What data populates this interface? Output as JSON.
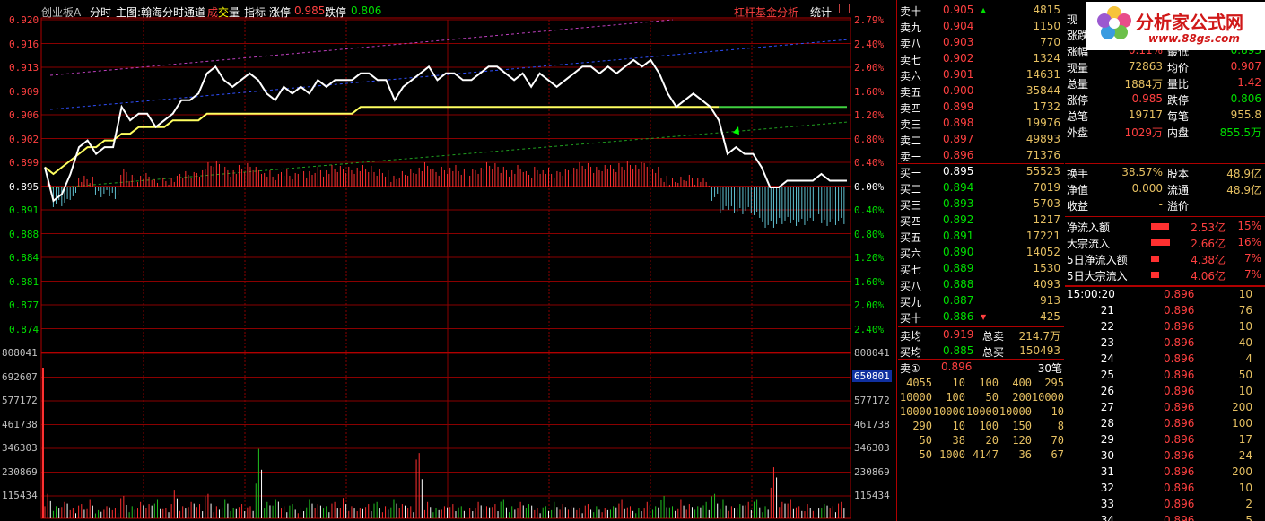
{
  "header": {
    "market": "创业板A",
    "items": [
      "分时",
      "主图:翰海分时通道",
      "成交量",
      "指标",
      "涨停",
      "跌停"
    ],
    "limit_up": "0.985",
    "limit_down": "0.806",
    "main_label": "主图:翰海分时通道",
    "vol_pre": "成",
    "vol_mid": "交",
    "vol_post": "量",
    "right_menu": "杠杆基金分析",
    "stats": "统计"
  },
  "price_axis": [
    "0.920",
    "0.916",
    "0.913",
    "0.909",
    "0.906",
    "0.902",
    "0.899",
    "0.895",
    "0.891",
    "0.888",
    "0.884",
    "0.881",
    "0.877",
    "0.874"
  ],
  "pct_axis": [
    "2.79%",
    "2.40%",
    "2.00%",
    "1.60%",
    "1.20%",
    "0.80%",
    "0.40%",
    "0.00%",
    "0.40%",
    "0.80%",
    "1.20%",
    "1.60%",
    "2.00%",
    "2.40%"
  ],
  "vol_axis": [
    "808041",
    "692607",
    "577172",
    "461738",
    "346303",
    "230869",
    "115434"
  ],
  "vol_marker": "650801",
  "order_book": {
    "sell": [
      {
        "label": "卖十",
        "price": "0.905",
        "vol": "4815",
        "arrow": "▲"
      },
      {
        "label": "卖九",
        "price": "0.904",
        "vol": "1150",
        "arrow": ""
      },
      {
        "label": "卖八",
        "price": "0.903",
        "vol": "770",
        "arrow": ""
      },
      {
        "label": "卖七",
        "price": "0.902",
        "vol": "1324",
        "arrow": ""
      },
      {
        "label": "卖六",
        "price": "0.901",
        "vol": "14631",
        "arrow": ""
      },
      {
        "label": "卖五",
        "price": "0.900",
        "vol": "35844",
        "arrow": ""
      },
      {
        "label": "卖四",
        "price": "0.899",
        "vol": "1732",
        "arrow": ""
      },
      {
        "label": "卖三",
        "price": "0.898",
        "vol": "19976",
        "arrow": ""
      },
      {
        "label": "卖二",
        "price": "0.897",
        "vol": "49893",
        "arrow": ""
      },
      {
        "label": "卖一",
        "price": "0.896",
        "vol": "71376",
        "arrow": ""
      }
    ],
    "buy": [
      {
        "label": "买一",
        "price": "0.895",
        "vol": "55523",
        "arrow": ""
      },
      {
        "label": "买二",
        "price": "0.894",
        "vol": "7019",
        "arrow": ""
      },
      {
        "label": "买三",
        "price": "0.893",
        "vol": "5703",
        "arrow": ""
      },
      {
        "label": "买四",
        "price": "0.892",
        "vol": "1217",
        "arrow": ""
      },
      {
        "label": "买五",
        "price": "0.891",
        "vol": "17221",
        "arrow": ""
      },
      {
        "label": "买六",
        "price": "0.890",
        "vol": "14052",
        "arrow": ""
      },
      {
        "label": "买七",
        "price": "0.889",
        "vol": "1530",
        "arrow": ""
      },
      {
        "label": "买八",
        "price": "0.888",
        "vol": "4093",
        "arrow": ""
      },
      {
        "label": "买九",
        "price": "0.887",
        "vol": "913",
        "arrow": ""
      },
      {
        "label": "买十",
        "price": "0.886",
        "vol": "425",
        "arrow": "▼"
      }
    ],
    "avg_sell_label": "卖均",
    "avg_sell": "0.919",
    "total_sell_label": "总卖",
    "total_sell": "214.7万",
    "avg_buy_label": "买均",
    "avg_buy": "0.885",
    "total_buy_label": "总买",
    "total_buy": "150493",
    "queue_label": "卖①",
    "queue_price": "0.896",
    "queue_count": "30笔",
    "queue": [
      [
        "4055",
        "10",
        "100",
        "400",
        "295"
      ],
      [
        "10000",
        "100",
        "50",
        "200",
        "10000"
      ],
      [
        "10000",
        "10000",
        "10000",
        "10000",
        "10"
      ],
      [
        "290",
        "10",
        "100",
        "150",
        "8"
      ],
      [
        "50",
        "38",
        "20",
        "120",
        "70"
      ],
      [
        "50",
        "1000",
        "4147",
        "36",
        "67"
      ]
    ]
  },
  "quote": {
    "rows": [
      {
        "l1": "现",
        "v1": "",
        "l2": "",
        "v2": ""
      },
      {
        "l1": "涨跌",
        "v1": "0.001",
        "l2": "最高",
        "v2": "0.915"
      },
      {
        "l1": "涨幅",
        "v1": "0.11%",
        "l2": "最低",
        "v2": "0.893"
      },
      {
        "l1": "现量",
        "v1": "72863",
        "l2": "均价",
        "v2": "0.907"
      },
      {
        "l1": "总量",
        "v1": "1884万",
        "l2": "量比",
        "v2": "1.42"
      },
      {
        "l1": "涨停",
        "v1": "0.985",
        "l2": "跌停",
        "v2": "0.806"
      },
      {
        "l1": "总笔",
        "v1": "19717",
        "l2": "每笔",
        "v2": "955.8"
      },
      {
        "l1": "外盘",
        "v1": "1029万",
        "l2": "内盘",
        "v2": "855.5万"
      }
    ],
    "rows2": [
      {
        "l1": "换手",
        "v1": "38.57%",
        "l2": "股本",
        "v2": "48.9亿"
      },
      {
        "l1": "净值",
        "v1": "0.000",
        "l2": "流通",
        "v2": "48.9亿"
      },
      {
        "l1": "收益",
        "v1": "-",
        "l2": "溢价",
        "v2": ""
      }
    ],
    "flows": [
      {
        "label": "净流入额",
        "value": "2.53亿",
        "pct": "15%",
        "ratio": 0.15
      },
      {
        "label": "大宗流入",
        "value": "2.66亿",
        "pct": "16%",
        "ratio": 0.16
      },
      {
        "label": "5日净流入额",
        "value": "4.38亿",
        "pct": "7%",
        "ratio": 0.07
      },
      {
        "label": "5日大宗流入",
        "value": "4.06亿",
        "pct": "7%",
        "ratio": 0.07
      }
    ]
  },
  "ticks": [
    {
      "time": "15:00:20",
      "price": "0.896",
      "vol": "10"
    },
    {
      "time": "21",
      "price": "0.896",
      "vol": "76"
    },
    {
      "time": "22",
      "price": "0.896",
      "vol": "10"
    },
    {
      "time": "23",
      "price": "0.896",
      "vol": "40"
    },
    {
      "time": "24",
      "price": "0.896",
      "vol": "4"
    },
    {
      "time": "25",
      "price": "0.896",
      "vol": "50"
    },
    {
      "time": "26",
      "price": "0.896",
      "vol": "10"
    },
    {
      "time": "27",
      "price": "0.896",
      "vol": "200"
    },
    {
      "time": "28",
      "price": "0.896",
      "vol": "100"
    },
    {
      "time": "29",
      "price": "0.896",
      "vol": "17"
    },
    {
      "time": "30",
      "price": "0.896",
      "vol": "24"
    },
    {
      "time": "31",
      "price": "0.896",
      "vol": "200"
    },
    {
      "time": "32",
      "price": "0.896",
      "vol": "10"
    },
    {
      "time": "33",
      "price": "0.896",
      "vol": "2"
    },
    {
      "time": "34",
      "price": "0.896",
      "vol": "5"
    }
  ],
  "logo": {
    "text": "分析家公式网",
    "url": "www.88gs.com"
  },
  "chart_data": {
    "type": "line",
    "price_range": [
      0.874,
      0.92
    ],
    "prev_close": 0.895,
    "price": [
      0.898,
      0.893,
      0.894,
      0.897,
      0.901,
      0.902,
      0.9,
      0.901,
      0.901,
      0.907,
      0.905,
      0.906,
      0.906,
      0.904,
      0.905,
      0.906,
      0.908,
      0.908,
      0.909,
      0.912,
      0.913,
      0.911,
      0.91,
      0.911,
      0.912,
      0.911,
      0.909,
      0.908,
      0.91,
      0.909,
      0.91,
      0.909,
      0.911,
      0.91,
      0.911,
      0.911,
      0.911,
      0.912,
      0.912,
      0.911,
      0.911,
      0.908,
      0.91,
      0.911,
      0.912,
      0.913,
      0.911,
      0.912,
      0.912,
      0.911,
      0.911,
      0.912,
      0.913,
      0.913,
      0.912,
      0.911,
      0.912,
      0.91,
      0.912,
      0.911,
      0.91,
      0.911,
      0.912,
      0.913,
      0.913,
      0.912,
      0.913,
      0.912,
      0.913,
      0.914,
      0.913,
      0.914,
      0.912,
      0.909,
      0.907,
      0.908,
      0.909,
      0.908,
      0.907,
      0.905,
      0.9,
      0.901,
      0.9,
      0.9,
      0.898,
      0.895,
      0.895,
      0.896,
      0.896,
      0.896,
      0.896,
      0.897,
      0.896,
      0.896,
      0.896
    ],
    "avg": [
      0.898,
      0.897,
      0.898,
      0.899,
      0.9,
      0.901,
      0.901,
      0.902,
      0.902,
      0.903,
      0.903,
      0.904,
      0.904,
      0.904,
      0.904,
      0.905,
      0.905,
      0.905,
      0.905,
      0.906,
      0.906,
      0.906,
      0.906,
      0.906,
      0.906,
      0.906,
      0.906,
      0.906,
      0.906,
      0.906,
      0.906,
      0.906,
      0.906,
      0.906,
      0.906,
      0.906,
      0.906,
      0.907,
      0.907,
      0.907,
      0.907,
      0.907,
      0.907,
      0.907,
      0.907,
      0.907,
      0.907,
      0.907,
      0.907,
      0.907,
      0.907,
      0.907,
      0.907,
      0.907,
      0.907,
      0.907,
      0.907,
      0.907,
      0.907,
      0.907,
      0.907,
      0.907,
      0.907,
      0.907,
      0.907,
      0.907,
      0.907,
      0.907,
      0.907,
      0.907,
      0.907,
      0.907,
      0.907,
      0.907,
      0.907,
      0.907,
      0.907,
      0.907,
      0.907,
      0.907,
      0.907,
      0.907,
      0.907,
      0.907,
      0.907,
      0.907,
      0.907,
      0.907,
      0.907,
      0.907,
      0.907,
      0.907,
      0.907,
      0.907,
      0.907
    ],
    "volume_range": [
      0,
      808041
    ],
    "volume": [
      120000,
      60000,
      80000,
      50000,
      70000,
      90000,
      40000,
      60000,
      50000,
      110000,
      60000,
      80000,
      70000,
      90000,
      50000,
      140000,
      60000,
      80000,
      70000,
      120000,
      60000,
      90000,
      50000,
      70000,
      60000,
      340000,
      80000,
      90000,
      60000,
      70000,
      50000,
      90000,
      70000,
      60000,
      80000,
      100000,
      60000,
      50000,
      70000,
      80000,
      60000,
      90000,
      70000,
      60000,
      320000,
      80000,
      50000,
      60000,
      70000,
      60000,
      50000,
      80000,
      60000,
      70000,
      90000,
      60000,
      80000,
      70000,
      50000,
      60000,
      80000,
      70000,
      60000,
      50000,
      70000,
      60000,
      50000,
      60000,
      90000,
      60000,
      50000,
      80000,
      60000,
      110000,
      60000,
      90000,
      70000,
      60000,
      80000,
      120000,
      90000,
      60000,
      70000,
      80000,
      90000,
      60000,
      250000,
      80000,
      90000,
      60000,
      70000,
      60000,
      70000,
      60000,
      80000
    ]
  }
}
